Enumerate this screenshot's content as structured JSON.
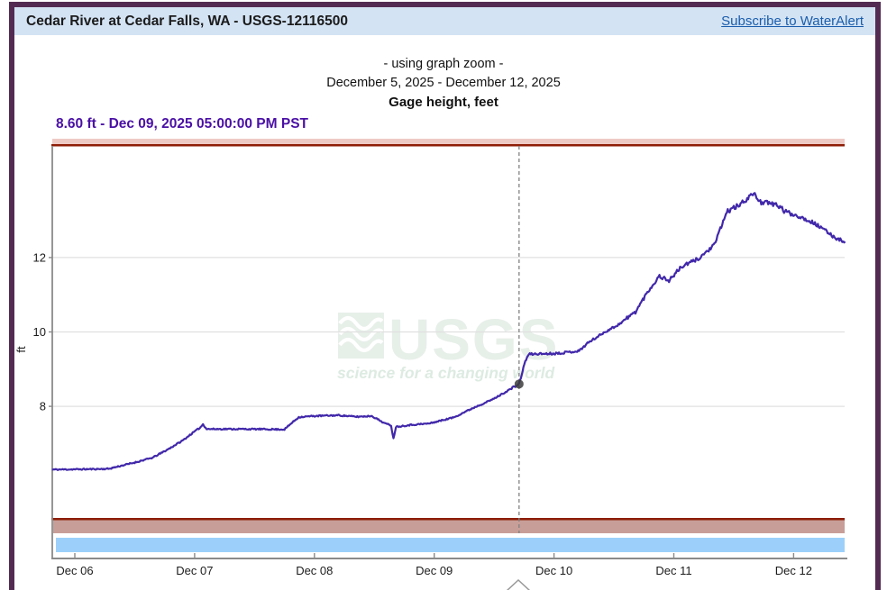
{
  "frame": {
    "border_color": "#532b52"
  },
  "header": {
    "title": "Cedar River at Cedar Falls, WA - USGS-12116500",
    "link_label": "Subscribe to WaterAlert",
    "bg_color": "#d3e3f4",
    "link_color": "#1a5dab"
  },
  "subtitle": {
    "zoom_note": "- using graph zoom -",
    "date_range": "December 5, 2025 - December 12, 2025",
    "parameter": "Gage height, feet"
  },
  "readout": {
    "text": "8.60 ft - Dec 09, 2025 05:00:00 PM PST",
    "color": "#4a10a5"
  },
  "watermark": {
    "name": "USGS",
    "tagline": "science for a changing world",
    "color": "#e7efe9",
    "tagline_color": "#ddebe2"
  },
  "chart_data": {
    "type": "line",
    "title": "Gage height, feet",
    "ylabel": "ft",
    "ylim": [
      5,
      15
    ],
    "yticks": [
      8,
      10,
      12
    ],
    "x_unit": "days since Dec 06, 2025 00:00 PST",
    "xlim_days": [
      -0.19,
      6.43
    ],
    "xticks": [
      {
        "day": 0,
        "label": "Dec 06"
      },
      {
        "day": 1,
        "label": "Dec 07"
      },
      {
        "day": 2,
        "label": "Dec 08"
      },
      {
        "day": 3,
        "label": "Dec 09"
      },
      {
        "day": 4,
        "label": "Dec 10"
      },
      {
        "day": 5,
        "label": "Dec 11"
      },
      {
        "day": 6,
        "label": "Dec 12"
      }
    ],
    "grid": true,
    "series": [
      {
        "name": "Gage height, feet",
        "color": "#4128aa",
        "points": [
          [
            -0.19,
            6.3
          ],
          [
            0.1,
            6.31
          ],
          [
            0.28,
            6.32
          ],
          [
            0.5,
            6.49
          ],
          [
            0.65,
            6.62
          ],
          [
            0.77,
            6.83
          ],
          [
            0.9,
            7.08
          ],
          [
            0.96,
            7.23
          ],
          [
            1.05,
            7.44
          ],
          [
            1.07,
            7.52
          ],
          [
            1.1,
            7.39
          ],
          [
            1.4,
            7.39
          ],
          [
            1.75,
            7.38
          ],
          [
            1.81,
            7.55
          ],
          [
            1.87,
            7.71
          ],
          [
            2.0,
            7.74
          ],
          [
            2.2,
            7.76
          ],
          [
            2.35,
            7.72
          ],
          [
            2.48,
            7.74
          ],
          [
            2.59,
            7.54
          ],
          [
            2.64,
            7.49
          ],
          [
            2.66,
            7.13
          ],
          [
            2.68,
            7.45
          ],
          [
            2.8,
            7.5
          ],
          [
            2.96,
            7.54
          ],
          [
            3.16,
            7.7
          ],
          [
            3.34,
            7.98
          ],
          [
            3.49,
            8.19
          ],
          [
            3.63,
            8.45
          ],
          [
            3.708,
            8.6
          ],
          [
            3.73,
            8.85
          ],
          [
            3.76,
            9.22
          ],
          [
            3.79,
            9.4
          ],
          [
            3.85,
            9.41
          ],
          [
            4.0,
            9.42
          ],
          [
            4.1,
            9.45
          ],
          [
            4.21,
            9.49
          ],
          [
            4.28,
            9.7
          ],
          [
            4.43,
            10.01
          ],
          [
            4.53,
            10.18
          ],
          [
            4.68,
            10.54
          ],
          [
            4.78,
            11.07
          ],
          [
            4.88,
            11.5
          ],
          [
            4.96,
            11.38
          ],
          [
            5.06,
            11.74
          ],
          [
            5.21,
            11.98
          ],
          [
            5.34,
            12.34
          ],
          [
            5.42,
            13.05
          ],
          [
            5.45,
            13.25
          ],
          [
            5.55,
            13.41
          ],
          [
            5.66,
            13.72
          ],
          [
            5.73,
            13.49
          ],
          [
            5.87,
            13.41
          ],
          [
            5.92,
            13.25
          ],
          [
            6.05,
            13.1
          ],
          [
            6.17,
            12.93
          ],
          [
            6.35,
            12.53
          ],
          [
            6.43,
            12.43
          ]
        ]
      }
    ],
    "cursor": {
      "day": 3.7083,
      "value": 8.6,
      "label": "8.60 ft - Dec 09, 2025 05:00:00 PM PST"
    },
    "colors": {
      "grid": "#e0e0e0",
      "axis": "#8a8a8a",
      "cursor_line": "#828282",
      "marker": "#3c3c3c",
      "band_pink": "#eecac5",
      "band_red": "#8e1d06",
      "band_mauve": "#c89e98",
      "band_blue": "#9cd0fa"
    }
  }
}
